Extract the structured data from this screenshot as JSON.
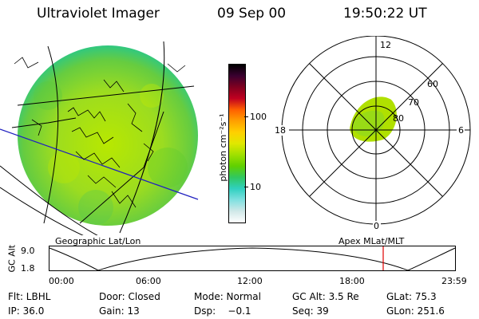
{
  "header": {
    "title": "Ultraviolet Imager",
    "date": "09 Sep 00",
    "time": "19:50:22 UT"
  },
  "colorbar": {
    "label": "photon cm⁻²s⁻¹",
    "ticks": [
      "100",
      "10"
    ],
    "colors": [
      "#000000",
      "#3a0030",
      "#800020",
      "#c00020",
      "#ff6000",
      "#ffa000",
      "#ffd000",
      "#e0e800",
      "#a0e000",
      "#60d000",
      "#30c860",
      "#30d0c0",
      "#80e0e0",
      "#d0e8e8",
      "#ffffff"
    ]
  },
  "polar_plot": {
    "mlt_labels": [
      "12",
      "18",
      "6",
      "0"
    ],
    "lat_labels": [
      "60",
      "70",
      "80"
    ]
  },
  "altitude_panel": {
    "left_title": "Geographic Lat/Lon",
    "right_title": "Apex MLat/MLT",
    "y_label": "GC Alt",
    "y_ticks": [
      "9.0",
      "1.8"
    ],
    "x_ticks": [
      "00:00",
      "06:00",
      "12:00",
      "18:00",
      "23:59"
    ],
    "marker_color": "#e00000"
  },
  "info": {
    "filter": "Flt: LBHL",
    "door": "Door: Closed",
    "mode": "Mode: Normal",
    "gc_alt": "GC Alt: 3.5 Re",
    "glat": "GLat:  75.3",
    "ip": "IP: 36.0",
    "gain": "Gain: 13",
    "dsp": "Dsp:    −0.1",
    "seq": "Seq: 39",
    "glon": "GLon: 251.6"
  }
}
